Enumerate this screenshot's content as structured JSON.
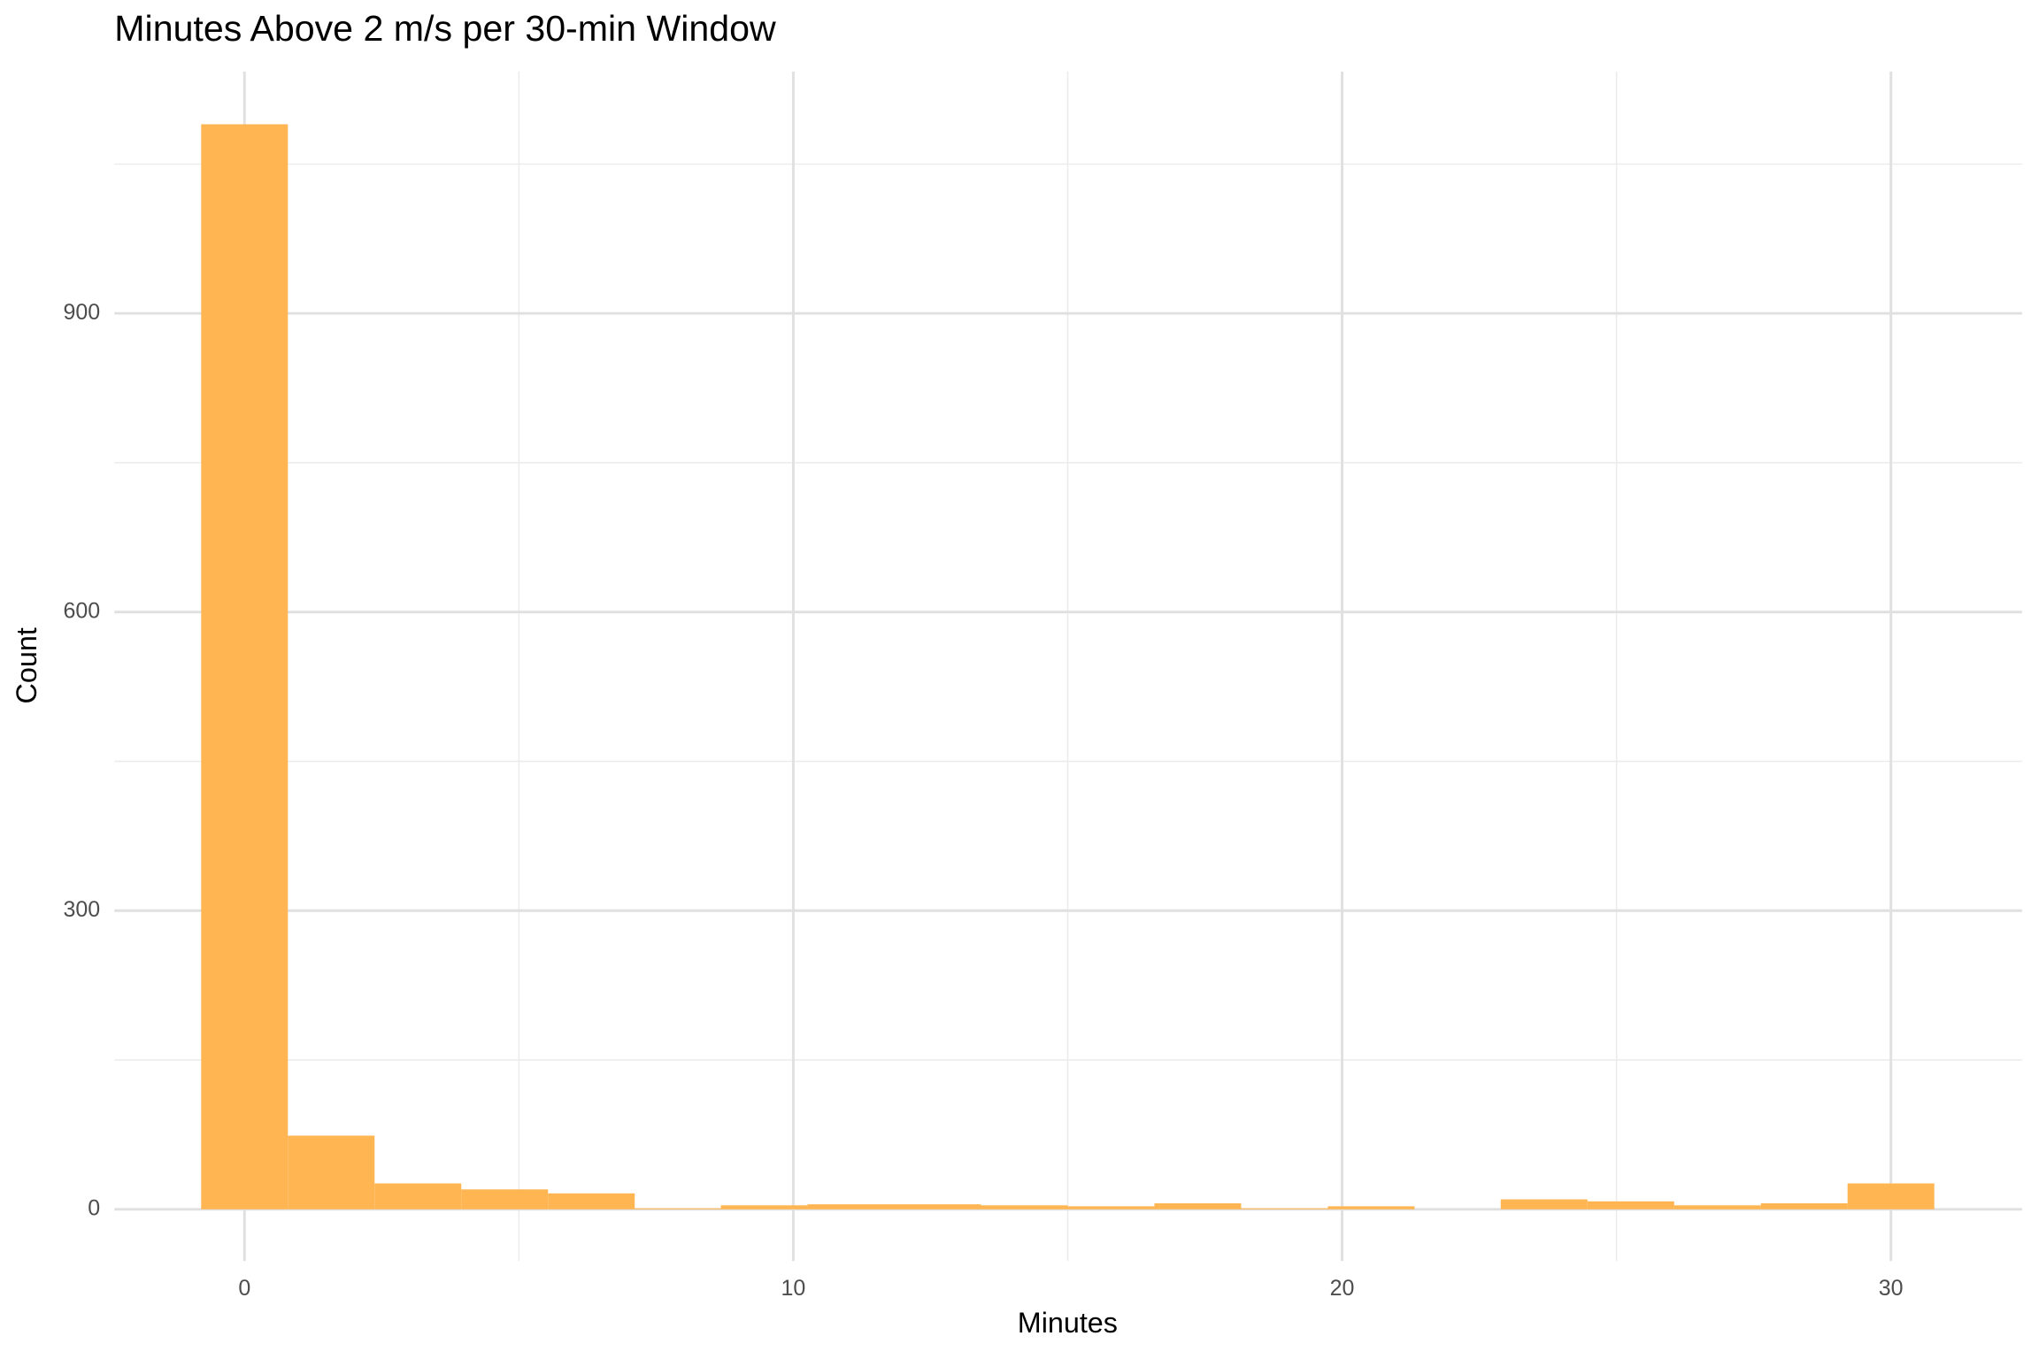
{
  "chart_data": {
    "type": "histogram",
    "title": "Minutes Above 2 m/s per 30-min Window",
    "x_label": "Minutes",
    "y_label": "Count",
    "bins": [
      -0.79,
      0.79,
      2.37,
      3.95,
      5.53,
      7.11,
      8.68,
      10.26,
      11.84,
      13.42,
      15,
      16.58,
      18.16,
      19.74,
      21.32,
      22.89,
      24.47,
      26.05,
      27.63,
      29.21,
      30.79
    ],
    "values": [
      1090,
      74,
      26,
      20,
      16,
      1,
      4,
      5,
      5,
      4,
      3,
      6,
      1,
      3,
      0,
      10,
      8,
      4,
      6,
      26
    ],
    "color": "#ffb552",
    "xlim": [
      -2.37,
      32.39
    ],
    "xticks": [
      0,
      10,
      20,
      30
    ],
    "minor_xticks": [
      5,
      15,
      25
    ],
    "ylim": [
      -52,
      1143
    ],
    "yticks": [
      0,
      300,
      600,
      900
    ],
    "minor_yticks": [
      150,
      450,
      750,
      1050
    ],
    "grid": true
  }
}
